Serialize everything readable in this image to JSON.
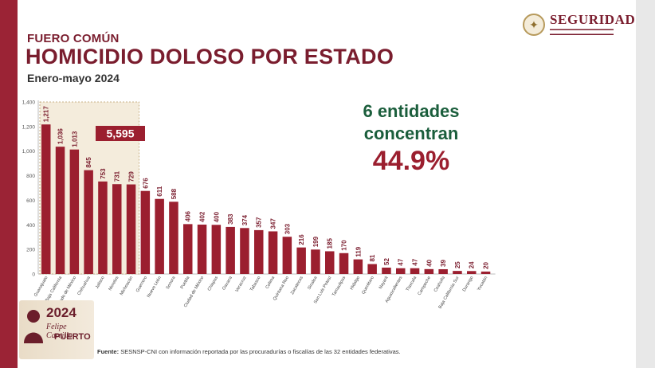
{
  "header": {
    "kicker": "FUERO COMÚN",
    "title": "HOMICIDIO DOLOSO POR ESTADO",
    "period": "Enero-mayo 2024"
  },
  "logo": {
    "name": "SEGURIDAD"
  },
  "callout": {
    "line1": "6 entidades",
    "line2": "concentran",
    "percent": "44.9%"
  },
  "highlight": {
    "total_label": "5,595",
    "count": 6
  },
  "badge": {
    "year": "2024",
    "name_line1": "Felipe Carrillo",
    "name_line2": "PUERTO"
  },
  "footer": {
    "source_label": "Fuente:",
    "source_text": "SESNSP-CNI con información reportada por las procuradurías o fiscalías de las 32 entidades federativas."
  },
  "colors": {
    "bar": "#9b1f2f",
    "highlight_box": "#9b1f2f",
    "accent_green": "#1b5e3c",
    "title_red": "#7a1d2e"
  },
  "chart_data": {
    "type": "bar",
    "ylim": [
      0,
      1400
    ],
    "yticks": [
      0,
      200,
      400,
      600,
      800,
      "1,000",
      "1,200",
      "1,400"
    ],
    "grid": false,
    "categories": [
      "Guanajuato",
      "Baja California",
      "Estado de México",
      "Chihuahua",
      "Jalisco",
      "Morelos",
      "Michoacán",
      "Guerrero",
      "Nuevo León",
      "Sonora",
      "Puebla",
      "Ciudad de México",
      "Chiapas",
      "Oaxaca",
      "Veracruz",
      "Tabasco",
      "Colima",
      "Quintana Roo",
      "Zacatecas",
      "Sinaloa",
      "San Luis Potosí",
      "Tamaulipas",
      "Hidalgo",
      "Querétaro",
      "Nayarit",
      "Aguascalientes",
      "Tlaxcala",
      "Campeche",
      "Coahuila",
      "Baja California Sur",
      "Durango",
      "Yucatán"
    ],
    "values": [
      1217,
      1036,
      1013,
      845,
      753,
      731,
      729,
      676,
      611,
      588,
      406,
      402,
      400,
      383,
      374,
      357,
      347,
      303,
      216,
      199,
      185,
      170,
      119,
      81,
      52,
      47,
      47,
      40,
      39,
      25,
      24,
      20
    ],
    "value_labels": [
      "1,217",
      "1,036",
      "1,013",
      "845",
      "753",
      "731",
      "729",
      "676",
      "611",
      "588",
      "406",
      "402",
      "400",
      "383",
      "374",
      "357",
      "347",
      "303",
      "216",
      "199",
      "185",
      "170",
      "119",
      "81",
      "52",
      "47",
      "47",
      "40",
      "39",
      "25",
      "24",
      "20"
    ]
  }
}
